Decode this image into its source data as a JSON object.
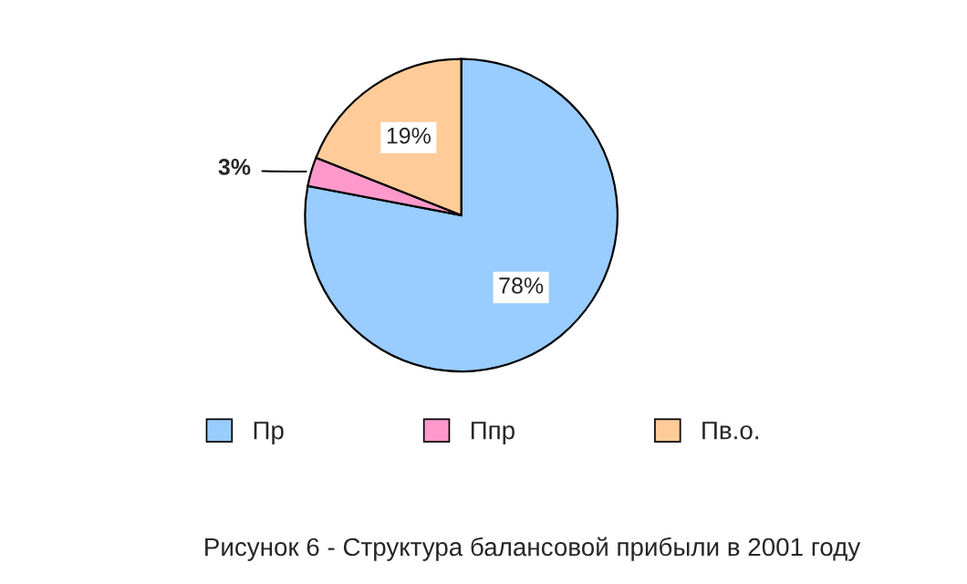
{
  "chart_data": {
    "type": "pie",
    "categories": [
      "Пр",
      "Ппр",
      "Пв.о."
    ],
    "values": [
      78,
      3,
      19
    ],
    "colors": [
      "#99ccff",
      "#ff99cc",
      "#ffcc99"
    ],
    "value_labels": [
      "78%",
      "3%",
      "19%"
    ],
    "legend": "bottom",
    "annotations": [
      "Рисунок 6 - Структура балансовой прибыли в 2001 году"
    ]
  }
}
